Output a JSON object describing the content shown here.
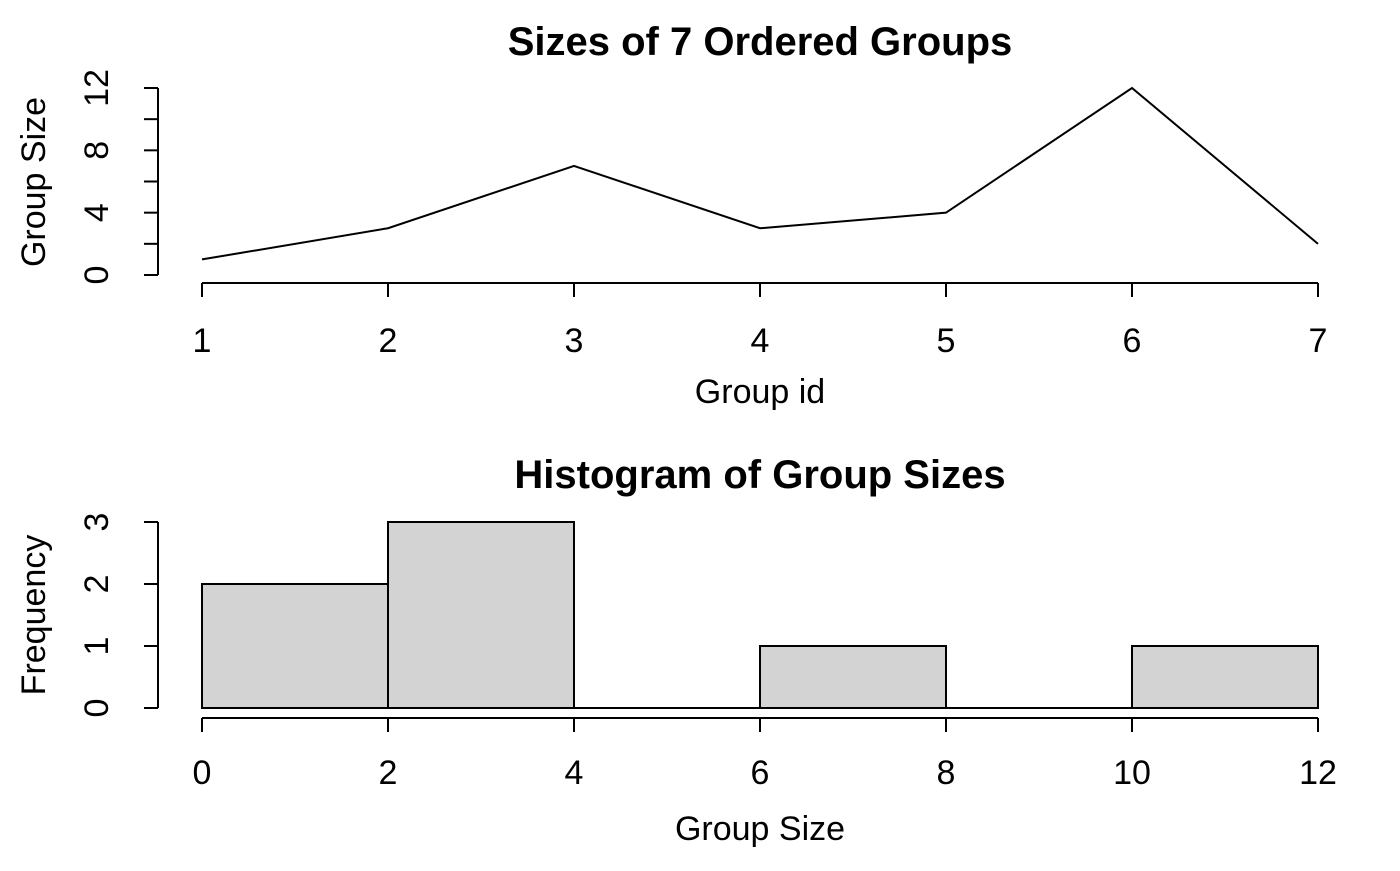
{
  "page": {
    "background": "#ffffff",
    "foreground": "#000000"
  },
  "chart_data": [
    {
      "type": "line",
      "title": "Sizes of 7 Ordered Groups",
      "xlabel": "Group id",
      "ylabel": "Group Size",
      "x": [
        1,
        2,
        3,
        4,
        5,
        6,
        7
      ],
      "y": [
        1,
        3,
        7,
        3,
        4,
        12,
        2
      ],
      "xlim": [
        1,
        7
      ],
      "ylim": [
        0,
        12
      ],
      "xticks": [
        1,
        2,
        3,
        4,
        5,
        6,
        7
      ],
      "yticks": [
        0,
        2,
        4,
        6,
        8,
        10,
        12
      ],
      "ytick_labels": [
        0,
        4,
        8,
        12
      ],
      "line_color": "#000000",
      "grid": false,
      "legend": null
    },
    {
      "type": "bar",
      "subtype": "histogram",
      "title": "Histogram of Group Sizes",
      "xlabel": "Group Size",
      "ylabel": "Frequency",
      "bins": [
        [
          0,
          2
        ],
        [
          2,
          4
        ],
        [
          4,
          6
        ],
        [
          6,
          8
        ],
        [
          8,
          10
        ],
        [
          10,
          12
        ]
      ],
      "counts": [
        2,
        3,
        0,
        1,
        0,
        1
      ],
      "xlim": [
        0,
        12
      ],
      "ylim": [
        0,
        3
      ],
      "xticks": [
        0,
        2,
        4,
        6,
        8,
        10,
        12
      ],
      "yticks": [
        0,
        1,
        2,
        3
      ],
      "ytick_labels": [
        0,
        1,
        2,
        3
      ],
      "bar_fill": "#d3d3d3",
      "bar_stroke": "#000000",
      "grid": false,
      "legend": null
    }
  ]
}
